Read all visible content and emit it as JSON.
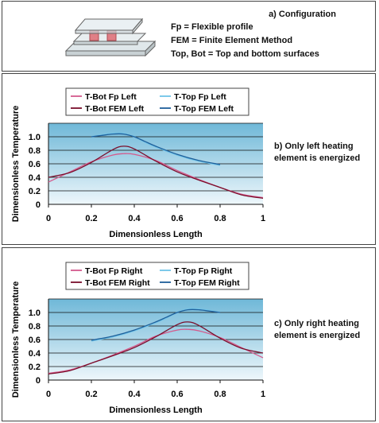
{
  "config": {
    "title": "a)  Configuration",
    "definitions": [
      "Fp = Flexible profile",
      "FEM = Finite Element Method",
      "Top, Bot = Top and bottom surfaces"
    ]
  },
  "colors": {
    "plot_bg_top": "#6fb8d8",
    "plot_bg_bottom": "#eef7fb",
    "bot_fp": "#d45a8c",
    "top_fp": "#6fc3e8",
    "bot_fem": "#7a0f2c",
    "top_fem": "#1f5f9a"
  },
  "chart_data": [
    {
      "type": "line",
      "caption": [
        "b)  Only  left  heating",
        "element is energized"
      ],
      "xlabel": "Dimensionless Length",
      "ylabel": "Dimensionless Temperature",
      "xlim": [
        0,
        1
      ],
      "ylim": [
        0,
        1.2
      ],
      "x_ticks": [
        "0",
        "0.2",
        "0.4",
        "0.6",
        "0.8",
        "1"
      ],
      "y_ticks": [
        "0",
        "0.2",
        "0.4",
        "0.6",
        "0.8",
        "1.0"
      ],
      "grid": true,
      "legend_position": "top",
      "series": [
        {
          "name": "T-Bot Fp Left",
          "x": [
            0,
            0.1,
            0.2,
            0.3,
            0.35,
            0.4,
            0.5,
            0.6,
            0.7,
            0.8,
            0.9,
            1.0
          ],
          "y": [
            0.33,
            0.48,
            0.63,
            0.73,
            0.75,
            0.74,
            0.65,
            0.5,
            0.37,
            0.25,
            0.15,
            0.1
          ]
        },
        {
          "name": "T-Top Fp Left",
          "x": [
            0.2,
            0.25,
            0.3,
            0.35,
            0.4,
            0.45,
            0.5,
            0.6,
            0.7,
            0.8
          ],
          "y": [
            1.0,
            1.03,
            1.05,
            1.05,
            1.0,
            0.92,
            0.85,
            0.73,
            0.64,
            0.58
          ]
        },
        {
          "name": "T-Bot FEM Left",
          "x": [
            0,
            0.1,
            0.2,
            0.3,
            0.35,
            0.4,
            0.5,
            0.6,
            0.7,
            0.8,
            0.9,
            1.0
          ],
          "y": [
            0.4,
            0.47,
            0.62,
            0.81,
            0.86,
            0.82,
            0.64,
            0.48,
            0.36,
            0.25,
            0.14,
            0.09
          ]
        },
        {
          "name": "T-Top FEM Left",
          "x": [
            0.2,
            0.25,
            0.3,
            0.35,
            0.4,
            0.45,
            0.5,
            0.6,
            0.7,
            0.8
          ],
          "y": [
            1.0,
            1.02,
            1.04,
            1.04,
            1.0,
            0.93,
            0.86,
            0.74,
            0.65,
            0.59
          ]
        }
      ]
    },
    {
      "type": "line",
      "caption": [
        "c)  Only  right  heating",
        "element is energized"
      ],
      "xlabel": "Dimensionless Length",
      "ylabel": "Dimensionless Temperature",
      "xlim": [
        0,
        1
      ],
      "ylim": [
        0,
        1.2
      ],
      "x_ticks": [
        "0",
        "0.2",
        "0.4",
        "0.6",
        "0.8",
        "1"
      ],
      "y_ticks": [
        "0",
        "0.2",
        "0.4",
        "0.6",
        "0.8",
        "1.0"
      ],
      "grid": true,
      "legend_position": "top",
      "series": [
        {
          "name": "T-Bot Fp Right",
          "x": [
            0,
            0.1,
            0.2,
            0.3,
            0.4,
            0.5,
            0.6,
            0.65,
            0.7,
            0.8,
            0.9,
            1.0
          ],
          "y": [
            0.1,
            0.15,
            0.25,
            0.37,
            0.5,
            0.65,
            0.74,
            0.75,
            0.73,
            0.63,
            0.48,
            0.33
          ]
        },
        {
          "name": "T-Top Fp Right",
          "x": [
            0.2,
            0.3,
            0.4,
            0.5,
            0.55,
            0.6,
            0.65,
            0.7,
            0.75,
            0.8
          ],
          "y": [
            0.58,
            0.64,
            0.73,
            0.85,
            0.92,
            1.0,
            1.05,
            1.05,
            1.03,
            1.0
          ]
        },
        {
          "name": "T-Bot FEM Right",
          "x": [
            0,
            0.1,
            0.2,
            0.3,
            0.4,
            0.5,
            0.6,
            0.65,
            0.7,
            0.8,
            0.9,
            1.0
          ],
          "y": [
            0.09,
            0.14,
            0.25,
            0.36,
            0.48,
            0.64,
            0.82,
            0.86,
            0.81,
            0.62,
            0.47,
            0.4
          ]
        },
        {
          "name": "T-Top FEM Right",
          "x": [
            0.2,
            0.3,
            0.4,
            0.5,
            0.55,
            0.6,
            0.65,
            0.7,
            0.75,
            0.8
          ],
          "y": [
            0.59,
            0.65,
            0.74,
            0.86,
            0.93,
            1.0,
            1.04,
            1.04,
            1.02,
            1.0
          ]
        }
      ]
    }
  ]
}
